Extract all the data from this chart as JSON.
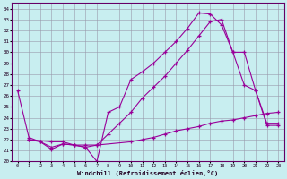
{
  "xlabel": "Windchill (Refroidissement éolien,°C)",
  "bg_color": "#c8eef0",
  "line_color": "#990099",
  "grid_color": "#9999aa",
  "xlim": [
    -0.5,
    23.5
  ],
  "ylim": [
    20,
    34.5
  ],
  "xticks": [
    0,
    1,
    2,
    3,
    4,
    5,
    6,
    7,
    8,
    9,
    10,
    11,
    12,
    13,
    14,
    15,
    16,
    17,
    18,
    19,
    20,
    21,
    22,
    23
  ],
  "yticks": [
    20,
    21,
    22,
    23,
    24,
    25,
    26,
    27,
    28,
    29,
    30,
    31,
    32,
    33,
    34
  ],
  "line1_x": [
    0,
    1,
    2,
    3,
    4,
    5,
    6,
    7,
    8,
    9,
    10,
    11,
    12,
    13,
    14,
    15,
    16,
    17,
    18,
    19,
    20,
    21,
    22,
    23
  ],
  "line1_y": [
    26.5,
    22.2,
    21.8,
    21.1,
    21.6,
    21.5,
    21.3,
    20.0,
    24.5,
    25.0,
    27.5,
    28.2,
    29.0,
    30.0,
    31.0,
    32.2,
    33.6,
    33.5,
    32.5,
    30.0,
    27.0,
    26.5,
    23.5,
    23.5
  ],
  "line2_x": [
    1,
    2,
    3,
    4,
    5,
    6,
    7,
    8,
    9,
    10,
    11,
    12,
    13,
    14,
    15,
    16,
    17,
    18,
    19,
    20,
    21,
    22,
    23
  ],
  "line2_y": [
    22.0,
    21.8,
    21.3,
    21.6,
    21.5,
    21.3,
    21.5,
    22.5,
    23.5,
    24.5,
    25.8,
    26.8,
    27.8,
    29.0,
    30.2,
    31.5,
    32.8,
    33.0,
    30.0,
    30.0,
    26.5,
    23.3,
    23.3
  ],
  "line3_x": [
    1,
    3,
    4,
    5,
    6,
    7,
    10,
    11,
    12,
    13,
    14,
    15,
    16,
    17,
    18,
    19,
    20,
    21,
    22,
    23
  ],
  "line3_y": [
    22.0,
    21.8,
    21.8,
    21.5,
    21.5,
    21.5,
    21.8,
    22.0,
    22.2,
    22.5,
    22.8,
    23.0,
    23.2,
    23.5,
    23.7,
    23.8,
    24.0,
    24.2,
    24.4,
    24.5
  ]
}
